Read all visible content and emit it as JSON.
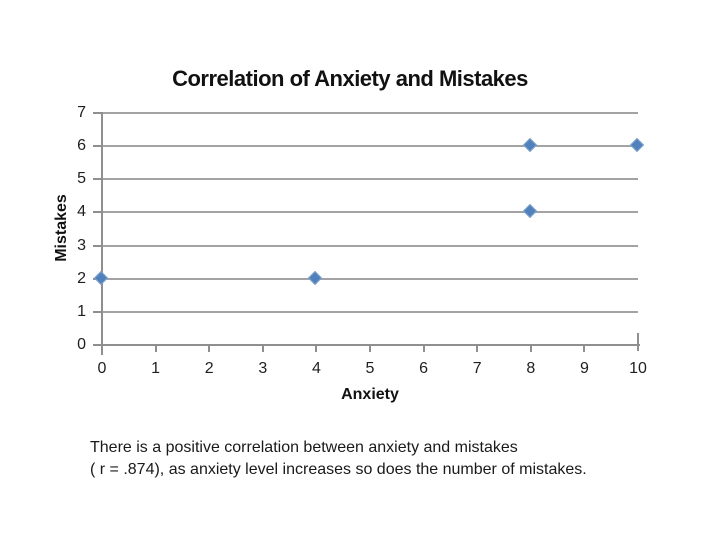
{
  "chart": {
    "title": "Correlation of Anxiety and Mistakes",
    "x_axis_title": "Anxiety",
    "y_axis_title": "Mistakes",
    "colors": {
      "marker_fill": "#4f81bd",
      "marker_edge": "#7da2d1",
      "gridline": "#a3a3a3",
      "axis": "#8f8f8f",
      "text": "#1f1f1f"
    }
  },
  "chart_data": {
    "type": "scatter",
    "title": "Correlation of Anxiety and Mistakes",
    "xlabel": "Anxiety",
    "ylabel": "Mistakes",
    "points": [
      [
        0,
        2
      ],
      [
        4,
        2
      ],
      [
        8,
        4
      ],
      [
        8,
        6
      ],
      [
        10,
        6
      ]
    ],
    "xlim": [
      0,
      10
    ],
    "ylim": [
      0,
      7
    ],
    "x_ticks": [
      0,
      1,
      2,
      3,
      4,
      5,
      6,
      7,
      8,
      9,
      10
    ],
    "y_ticks": [
      0,
      1,
      2,
      3,
      4,
      5,
      6,
      7
    ],
    "grid": "horizontal-only",
    "legend": "none",
    "marker": "diamond",
    "annotation": "r = .874"
  },
  "caption": {
    "line1": "There is a positive correlation between anxiety and mistakes",
    "line2": "( r = .874), as anxiety level increases so does the number of mistakes."
  }
}
